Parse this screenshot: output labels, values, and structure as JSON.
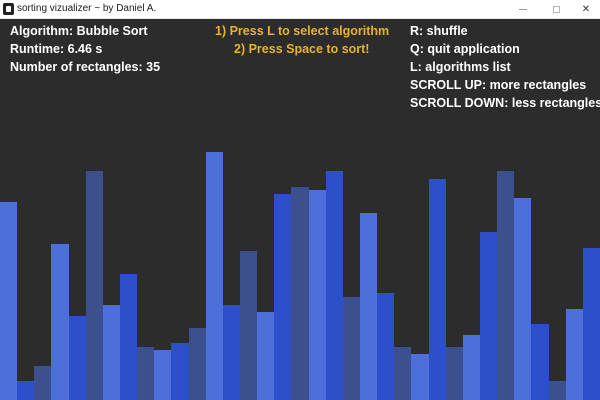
{
  "window": {
    "title": "sorting vizualizer ~ by Daniel A.",
    "minimize_glyph": "minimize-icon",
    "maximize_glyph": "maximize-icon",
    "close_glyph": "✕"
  },
  "info": {
    "algorithm": "Algorithm: Bubble Sort",
    "runtime": "Runtime: 6.46 s",
    "count": "Number of rectangles: 35"
  },
  "instructions": {
    "step1": "1) Press L to select algorithm",
    "step2": "2) Press Space to sort!"
  },
  "controls": {
    "shuffle": "R: shuffle",
    "quit": "Q: quit application",
    "list": "L: algorithms list",
    "more": "SCROLL UP: more rectangles",
    "less": "SCROLL DOWN: less rectangles"
  },
  "colors": {
    "background": "#2c2c2c",
    "instruction": "#e7b22c",
    "text": "#ffffff",
    "bar_light": "#4d6fd9",
    "bar_medium": "#2c4fcc",
    "bar_dark": "#3c4f8f"
  },
  "bars": {
    "count": 35,
    "heights": [
      0.52,
      0.05,
      0.09,
      0.41,
      0.22,
      0.6,
      0.25,
      0.33,
      0.14,
      0.13,
      0.15,
      0.19,
      0.65,
      0.25,
      0.39,
      0.23,
      0.54,
      0.56,
      0.55,
      0.6,
      0.27,
      0.49,
      0.28,
      0.14,
      0.12,
      0.58,
      0.14,
      0.17,
      0.44,
      0.6,
      0.53,
      0.2,
      0.05,
      0.24,
      0.4
    ],
    "shades": [
      "light",
      "medium",
      "dark",
      "light",
      "medium",
      "dark",
      "light",
      "medium",
      "dark",
      "light",
      "medium",
      "dark",
      "light",
      "medium",
      "dark",
      "light",
      "medium",
      "dark",
      "light",
      "medium",
      "dark",
      "light",
      "medium",
      "dark",
      "light",
      "medium",
      "dark",
      "light",
      "medium",
      "dark",
      "light",
      "medium",
      "dark",
      "light",
      "medium"
    ]
  }
}
